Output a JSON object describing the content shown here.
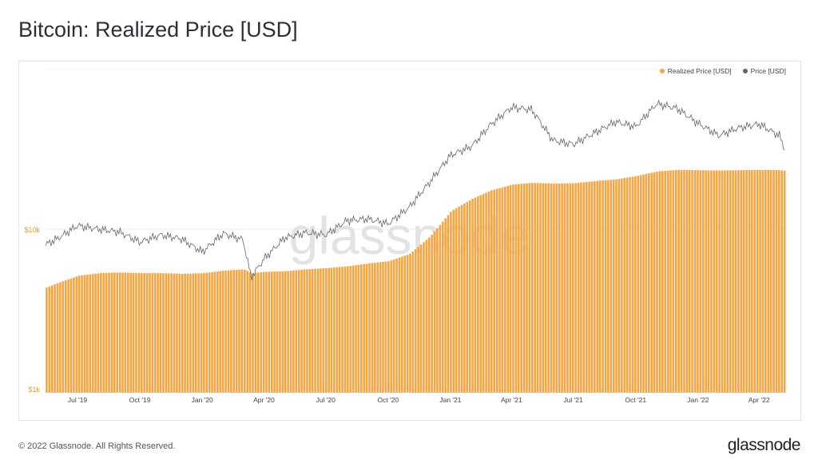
{
  "title": "Bitcoin: Realized Price [USD]",
  "footer": "© 2022 Glassnode. All Rights Reserved.",
  "brand": "glassnode",
  "watermark": "glassnode",
  "colors": {
    "realized": "#f7a541",
    "price": "#666666",
    "ytick": "#e8963a"
  },
  "chart_data": {
    "type": "bar+line",
    "title": "Bitcoin: Realized Price [USD]",
    "yscale": "log",
    "ylim": [
      1000,
      100000
    ],
    "yticks": [
      {
        "value": 1000,
        "label": "$1k"
      },
      {
        "value": 10000,
        "label": "$10k"
      }
    ],
    "xticks": [
      {
        "date": "2019-07-01",
        "label": "Jul '19"
      },
      {
        "date": "2019-10-01",
        "label": "Oct '19"
      },
      {
        "date": "2020-01-01",
        "label": "Jan '20"
      },
      {
        "date": "2020-04-01",
        "label": "Apr '20"
      },
      {
        "date": "2020-07-01",
        "label": "Jul '20"
      },
      {
        "date": "2020-10-01",
        "label": "Oct '20"
      },
      {
        "date": "2021-01-01",
        "label": "Jan '21"
      },
      {
        "date": "2021-04-01",
        "label": "Apr '21"
      },
      {
        "date": "2021-07-01",
        "label": "Jul '21"
      },
      {
        "date": "2021-10-01",
        "label": "Oct '21"
      },
      {
        "date": "2022-01-01",
        "label": "Jan '22"
      },
      {
        "date": "2022-04-01",
        "label": "Apr '22"
      }
    ],
    "legend": {
      "position": "top-right",
      "entries": [
        "Realized Price [USD]",
        "Price [USD]"
      ]
    },
    "dates": [
      "2019-05-15",
      "2019-06-01",
      "2019-07-01",
      "2019-08-01",
      "2019-09-01",
      "2019-10-01",
      "2019-11-01",
      "2019-12-01",
      "2020-01-01",
      "2020-02-01",
      "2020-03-01",
      "2020-03-13",
      "2020-04-01",
      "2020-05-01",
      "2020-06-01",
      "2020-07-01",
      "2020-08-01",
      "2020-09-01",
      "2020-10-01",
      "2020-11-01",
      "2020-12-01",
      "2021-01-01",
      "2021-02-01",
      "2021-03-01",
      "2021-04-01",
      "2021-05-01",
      "2021-06-01",
      "2021-07-01",
      "2021-08-01",
      "2021-09-01",
      "2021-10-01",
      "2021-11-01",
      "2021-12-01",
      "2022-01-01",
      "2022-02-01",
      "2022-03-01",
      "2022-04-01",
      "2022-05-01",
      "2022-05-10"
    ],
    "series": [
      {
        "name": "Realized Price [USD]",
        "type": "bar",
        "values": [
          4300,
          4600,
          5100,
          5300,
          5350,
          5300,
          5300,
          5250,
          5300,
          5500,
          5600,
          5300,
          5400,
          5450,
          5600,
          5700,
          5850,
          6100,
          6300,
          7000,
          9000,
          13000,
          15500,
          17500,
          19000,
          19500,
          19300,
          19400,
          20000,
          20500,
          21500,
          23000,
          23500,
          23400,
          23300,
          23400,
          23500,
          23400,
          23200
        ]
      },
      {
        "name": "Price [USD]",
        "type": "line",
        "values": [
          8000,
          8700,
          10500,
          10000,
          9600,
          8300,
          9200,
          8700,
          7200,
          9400,
          8600,
          5000,
          6500,
          8800,
          9500,
          9200,
          11300,
          11600,
          10800,
          13700,
          19600,
          29000,
          33000,
          45000,
          58000,
          56000,
          36000,
          34000,
          40000,
          47000,
          43800,
          61000,
          57000,
          46000,
          38500,
          43000,
          45500,
          38500,
          31000
        ]
      }
    ]
  }
}
